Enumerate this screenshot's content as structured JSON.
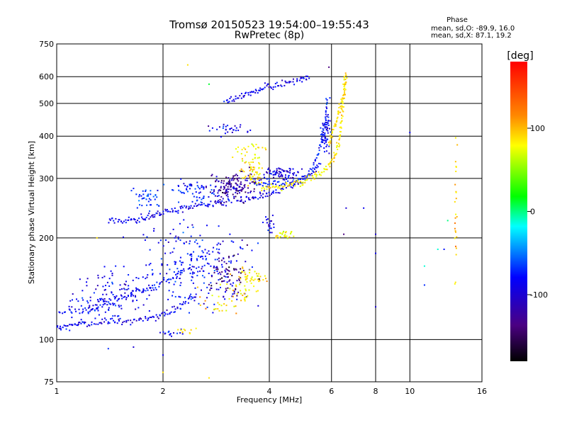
{
  "chart_data": {
    "type": "scatter",
    "title": "Tromsø 20150523 19:54:00–19:55:43",
    "subtitle": "RwPretec (8p)",
    "xlabel": "Frequency [MHz]",
    "ylabel": "Stationary phase Virtual Height [km]",
    "x_scale": "log",
    "y_scale": "log",
    "xlim": [
      1,
      16
    ],
    "ylim": [
      75,
      750
    ],
    "x_ticks": [
      1,
      2,
      4,
      6,
      8,
      10,
      16
    ],
    "y_ticks": [
      75,
      100,
      200,
      300,
      400,
      500,
      600,
      750
    ],
    "grid": true,
    "legend": {
      "heading": "Phase",
      "line_o": "mean, sd,O: -89.9, 16.0",
      "line_x": "mean, sd,X:  87.1, 19.2",
      "placement": "top-right"
    },
    "colorbar": {
      "label": "[deg]",
      "min": -180,
      "max": 180,
      "ticks": [
        100,
        0,
        -100
      ],
      "colormap": "rainbow"
    },
    "traces": [
      {
        "x": [
          1.0,
          1.1,
          1.2,
          1.35,
          1.5,
          1.7,
          1.9,
          2.1,
          2.3,
          2.5
        ],
        "y": [
          108,
          110,
          112,
          113,
          113,
          114,
          116,
          121,
          128,
          135
        ],
        "phase": -110
      },
      {
        "x": [
          1.0,
          1.2,
          1.4,
          1.6,
          1.8,
          2.0,
          2.3
        ],
        "y": [
          120,
          122,
          128,
          135,
          140,
          148,
          160
        ],
        "phase": -105
      },
      {
        "x": [
          1.4,
          1.55,
          1.7,
          1.85,
          2.0,
          2.2,
          2.4,
          2.7,
          3.0,
          3.4,
          3.8,
          4.2,
          4.7,
          5.2,
          5.6
        ],
        "y": [
          223,
          224,
          227,
          232,
          237,
          243,
          248,
          252,
          256,
          260,
          266,
          275,
          287,
          305,
          330
        ],
        "phase": -110
      },
      {
        "x": [
          3.6,
          4.0,
          4.4,
          4.8,
          5.2,
          5.5,
          5.7,
          5.85
        ],
        "y": [
          292,
          288,
          290,
          295,
          310,
          350,
          420,
          520
        ],
        "phase": -95
      },
      {
        "x": [
          3.8,
          4.2,
          4.6,
          5.0,
          5.4,
          5.8,
          6.1,
          6.3,
          6.4,
          6.5,
          6.55
        ],
        "y": [
          280,
          282,
          287,
          293,
          305,
          320,
          345,
          380,
          440,
          520,
          620
        ],
        "phase": 105
      },
      {
        "x": [
          3.0,
          3.3,
          3.6,
          3.9,
          4.3,
          4.8,
          5.2
        ],
        "y": [
          510,
          520,
          540,
          555,
          570,
          585,
          600
        ],
        "phase": -110
      },
      {
        "x": [
          5.9,
          6.1,
          6.3,
          6.5,
          6.6
        ],
        "y": [
          380,
          420,
          470,
          530,
          610
        ],
        "phase": 110
      }
    ],
    "clusters": [
      {
        "x": 1.5,
        "y": 140,
        "sx": 0.12,
        "sy": 0.08,
        "n": 90,
        "phase": -110
      },
      {
        "x": 1.3,
        "y": 126,
        "sx": 0.1,
        "sy": 0.05,
        "n": 50,
        "phase": -105
      },
      {
        "x": 2.5,
        "y": 165,
        "sx": 0.16,
        "sy": 0.14,
        "n": 230,
        "phase": -100
      },
      {
        "x": 3.1,
        "y": 155,
        "sx": 0.07,
        "sy": 0.08,
        "n": 70,
        "phase": -150
      },
      {
        "x": 3.5,
        "y": 150,
        "sx": 0.06,
        "sy": 0.07,
        "n": 60,
        "phase": 105
      },
      {
        "x": 2.9,
        "y": 130,
        "sx": 0.08,
        "sy": 0.05,
        "n": 30,
        "phase": 110
      },
      {
        "x": 2.5,
        "y": 275,
        "sx": 0.1,
        "sy": 0.05,
        "n": 60,
        "phase": -90
      },
      {
        "x": 3.2,
        "y": 285,
        "sx": 0.08,
        "sy": 0.05,
        "n": 160,
        "phase": -140
      },
      {
        "x": 3.6,
        "y": 312,
        "sx": 0.04,
        "sy": 0.04,
        "n": 50,
        "phase": 110
      },
      {
        "x": 4.3,
        "y": 310,
        "sx": 0.06,
        "sy": 0.02,
        "n": 70,
        "phase": -115
      },
      {
        "x": 1.8,
        "y": 262,
        "sx": 0.05,
        "sy": 0.04,
        "n": 40,
        "phase": -85
      },
      {
        "x": 3.6,
        "y": 360,
        "sx": 0.05,
        "sy": 0.04,
        "n": 30,
        "phase": 105
      },
      {
        "x": 3.0,
        "y": 420,
        "sx": 0.06,
        "sy": 0.02,
        "n": 30,
        "phase": -110
      },
      {
        "x": 4.4,
        "y": 205,
        "sx": 0.03,
        "sy": 0.015,
        "n": 25,
        "phase": 100
      },
      {
        "x": 4.0,
        "y": 220,
        "sx": 0.02,
        "sy": 0.04,
        "n": 20,
        "phase": -115
      },
      {
        "x": 5.8,
        "y": 420,
        "sx": 0.015,
        "sy": 0.1,
        "n": 60,
        "phase": -110
      },
      {
        "x": 13.5,
        "y": 250,
        "sx": 0.005,
        "sy": 0.35,
        "n": 25,
        "phase": 120
      },
      {
        "x": 2.1,
        "y": 105,
        "sx": 0.04,
        "sy": 0.01,
        "n": 15,
        "phase": -110
      },
      {
        "x": 2.3,
        "y": 106,
        "sx": 0.03,
        "sy": 0.01,
        "n": 10,
        "phase": 110
      }
    ],
    "points": [
      {
        "x": 2.35,
        "y": 650,
        "phase": 110
      },
      {
        "x": 2.7,
        "y": 570,
        "phase": 10
      },
      {
        "x": 5.9,
        "y": 640,
        "phase": -150
      },
      {
        "x": 10.0,
        "y": 410,
        "phase": -110
      },
      {
        "x": 6.6,
        "y": 245,
        "phase": -120
      },
      {
        "x": 7.4,
        "y": 245,
        "phase": -110
      },
      {
        "x": 8.0,
        "y": 205,
        "phase": -120
      },
      {
        "x": 8.0,
        "y": 180,
        "phase": -110
      },
      {
        "x": 11.0,
        "y": 165,
        "phase": -10
      },
      {
        "x": 11.0,
        "y": 145,
        "phase": -90
      },
      {
        "x": 8.0,
        "y": 125,
        "phase": -120
      },
      {
        "x": 12.0,
        "y": 185,
        "phase": -10
      },
      {
        "x": 12.5,
        "y": 185,
        "phase": -100
      },
      {
        "x": 12.8,
        "y": 225,
        "phase": 0
      },
      {
        "x": 1.4,
        "y": 94,
        "phase": -90
      },
      {
        "x": 1.65,
        "y": 95,
        "phase": -120
      },
      {
        "x": 2.0,
        "y": 90,
        "phase": -110
      },
      {
        "x": 2.7,
        "y": 77,
        "phase": 110
      },
      {
        "x": 2.0,
        "y": 80,
        "phase": 110
      },
      {
        "x": 1.3,
        "y": 200,
        "phase": 110
      },
      {
        "x": 6.5,
        "y": 205,
        "phase": -150
      }
    ]
  }
}
